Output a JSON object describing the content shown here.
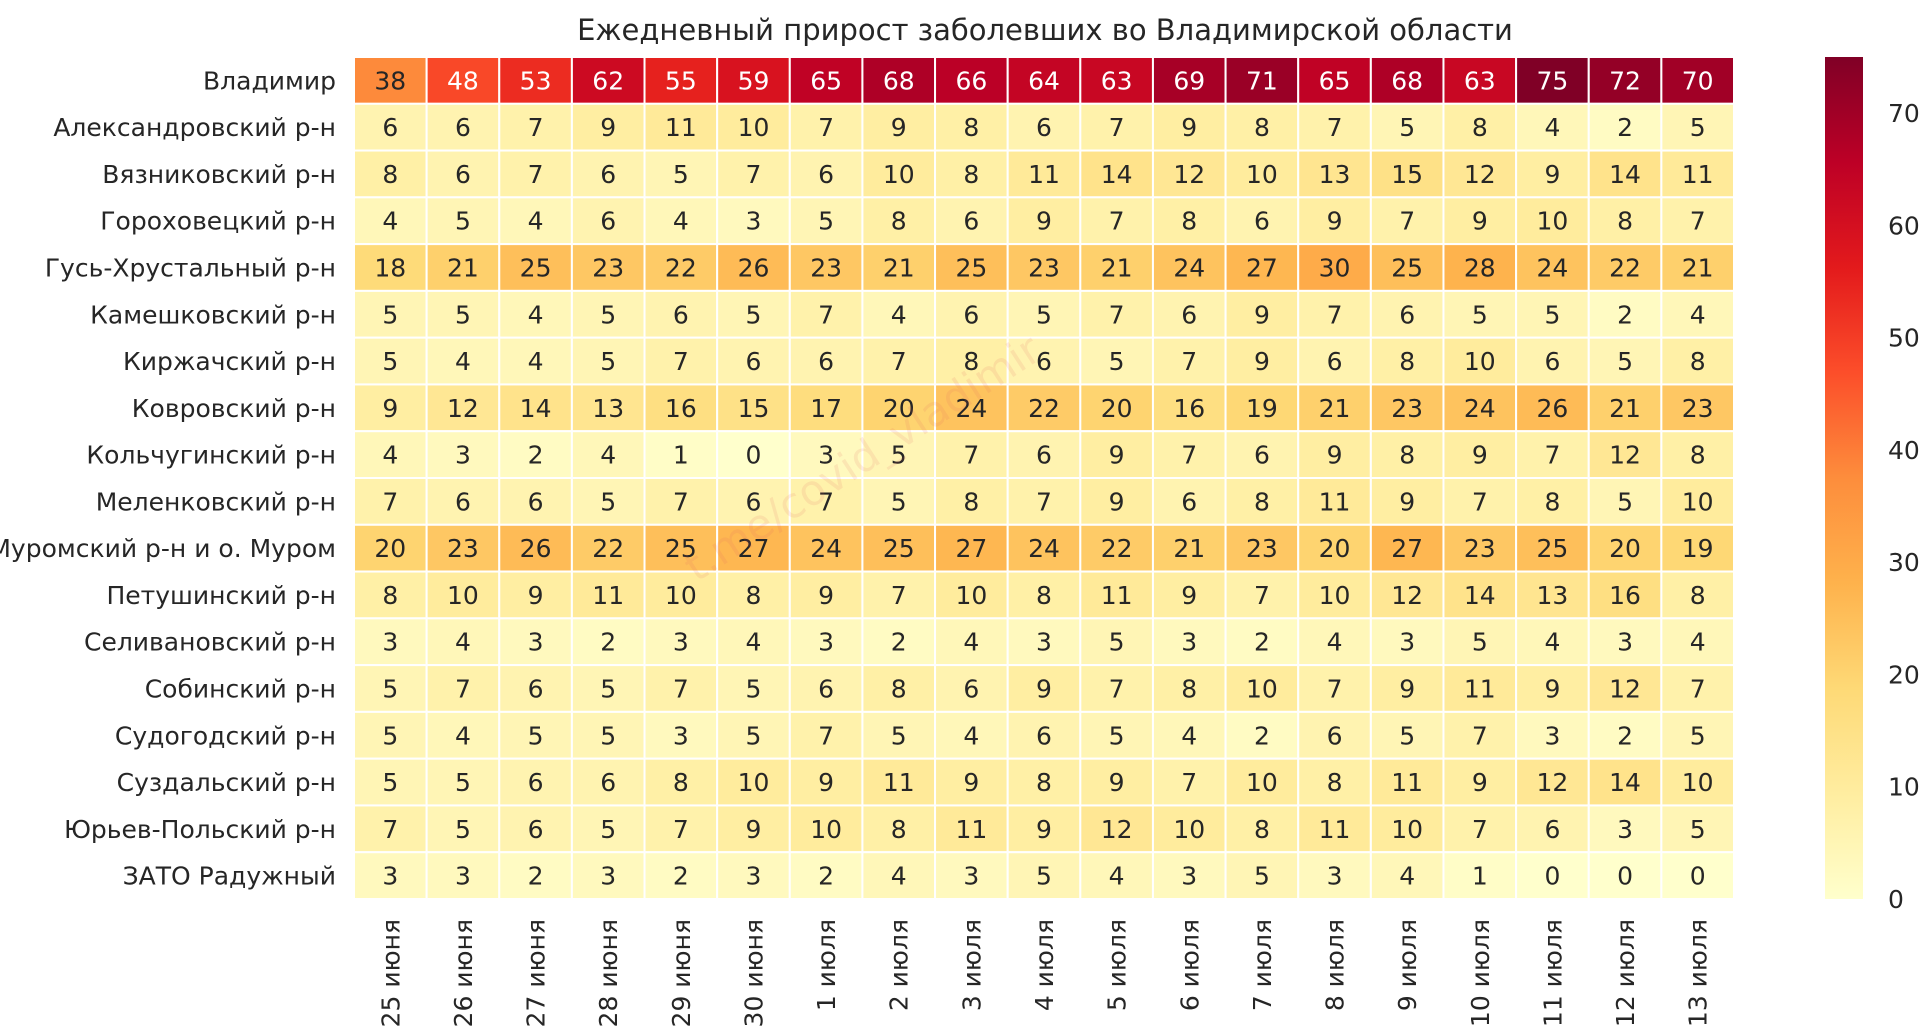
{
  "chart_data": {
    "type": "heatmap",
    "title": "Ежедневный прирост заболевших во Владимирской области",
    "xlabel": "",
    "ylabel": "",
    "watermark": "t.me/covid_vladimir",
    "rows": [
      "Владимир",
      "Александровский р-н",
      "Вязниковский р-н",
      "Гороховецкий р-н",
      "Гусь-Хрустальный р-н",
      "Камешковский р-н",
      "Киржачский р-н",
      "Ковровский р-н",
      "Кольчугинский р-н",
      "Меленковский р-н",
      "Муромский р-н и о. Муром",
      "Петушинский р-н",
      "Селивановский р-н",
      "Собинский р-н",
      "Судогодский р-н",
      "Суздальский р-н",
      "Юрьев-Польский р-н",
      "ЗАТО Радужный"
    ],
    "columns": [
      "25 июня",
      "26 июня",
      "27 июня",
      "28 июня",
      "29 июня",
      "30 июня",
      "1 июля",
      "2 июля",
      "3 июля",
      "4 июля",
      "5 июля",
      "6 июля",
      "7 июля",
      "8 июля",
      "9 июля",
      "10 июля",
      "11 июля",
      "12 июля",
      "13 июля"
    ],
    "values": [
      [
        38,
        48,
        53,
        62,
        55,
        59,
        65,
        68,
        66,
        64,
        63,
        69,
        71,
        65,
        68,
        63,
        75,
        72,
        70
      ],
      [
        6,
        6,
        7,
        9,
        11,
        10,
        7,
        9,
        8,
        6,
        7,
        9,
        8,
        7,
        5,
        8,
        4,
        2,
        5
      ],
      [
        8,
        6,
        7,
        6,
        5,
        7,
        6,
        10,
        8,
        11,
        14,
        12,
        10,
        13,
        15,
        12,
        9,
        14,
        11
      ],
      [
        4,
        5,
        4,
        6,
        4,
        3,
        5,
        8,
        6,
        9,
        7,
        8,
        6,
        9,
        7,
        9,
        10,
        8,
        7
      ],
      [
        18,
        21,
        25,
        23,
        22,
        26,
        23,
        21,
        25,
        23,
        21,
        24,
        27,
        30,
        25,
        28,
        24,
        22,
        21
      ],
      [
        5,
        5,
        4,
        5,
        6,
        5,
        7,
        4,
        6,
        5,
        7,
        6,
        9,
        7,
        6,
        5,
        5,
        2,
        4
      ],
      [
        5,
        4,
        4,
        5,
        7,
        6,
        6,
        7,
        8,
        6,
        5,
        7,
        9,
        6,
        8,
        10,
        6,
        5,
        8
      ],
      [
        9,
        12,
        14,
        13,
        16,
        15,
        17,
        20,
        24,
        22,
        20,
        16,
        19,
        21,
        23,
        24,
        26,
        21,
        23
      ],
      [
        4,
        3,
        2,
        4,
        1,
        0,
        3,
        5,
        7,
        6,
        9,
        7,
        6,
        9,
        8,
        9,
        7,
        12,
        8
      ],
      [
        7,
        6,
        6,
        5,
        7,
        6,
        7,
        5,
        8,
        7,
        9,
        6,
        8,
        11,
        9,
        7,
        8,
        5,
        10
      ],
      [
        20,
        23,
        26,
        22,
        25,
        27,
        24,
        25,
        27,
        24,
        22,
        21,
        23,
        20,
        27,
        23,
        25,
        20,
        19
      ],
      [
        8,
        10,
        9,
        11,
        10,
        8,
        9,
        7,
        10,
        8,
        11,
        9,
        7,
        10,
        12,
        14,
        13,
        16,
        8
      ],
      [
        3,
        4,
        3,
        2,
        3,
        4,
        3,
        2,
        4,
        3,
        5,
        3,
        2,
        4,
        3,
        5,
        4,
        3,
        4
      ],
      [
        5,
        7,
        6,
        5,
        7,
        5,
        6,
        8,
        6,
        9,
        7,
        8,
        10,
        7,
        9,
        11,
        9,
        12,
        7
      ],
      [
        5,
        4,
        5,
        5,
        3,
        5,
        7,
        5,
        4,
        6,
        5,
        4,
        2,
        6,
        5,
        7,
        3,
        2,
        5
      ],
      [
        5,
        5,
        6,
        6,
        8,
        10,
        9,
        11,
        9,
        8,
        9,
        7,
        10,
        8,
        11,
        9,
        12,
        14,
        10
      ],
      [
        7,
        5,
        6,
        5,
        7,
        9,
        10,
        8,
        11,
        9,
        12,
        10,
        8,
        11,
        10,
        7,
        6,
        3,
        5
      ],
      [
        3,
        3,
        2,
        3,
        2,
        3,
        2,
        4,
        3,
        5,
        4,
        3,
        5,
        3,
        4,
        1,
        0,
        0,
        0
      ]
    ],
    "vmin": 0,
    "vmax": 75,
    "colorbar_ticks": [
      0,
      10,
      20,
      30,
      40,
      50,
      60,
      70
    ],
    "colormap": "YlOrRd",
    "colormap_stops": [
      "#ffffcc",
      "#ffeda0",
      "#fed976",
      "#feb24c",
      "#fd8d3c",
      "#fc4e2a",
      "#e31a1c",
      "#bd0026",
      "#800026"
    ]
  }
}
